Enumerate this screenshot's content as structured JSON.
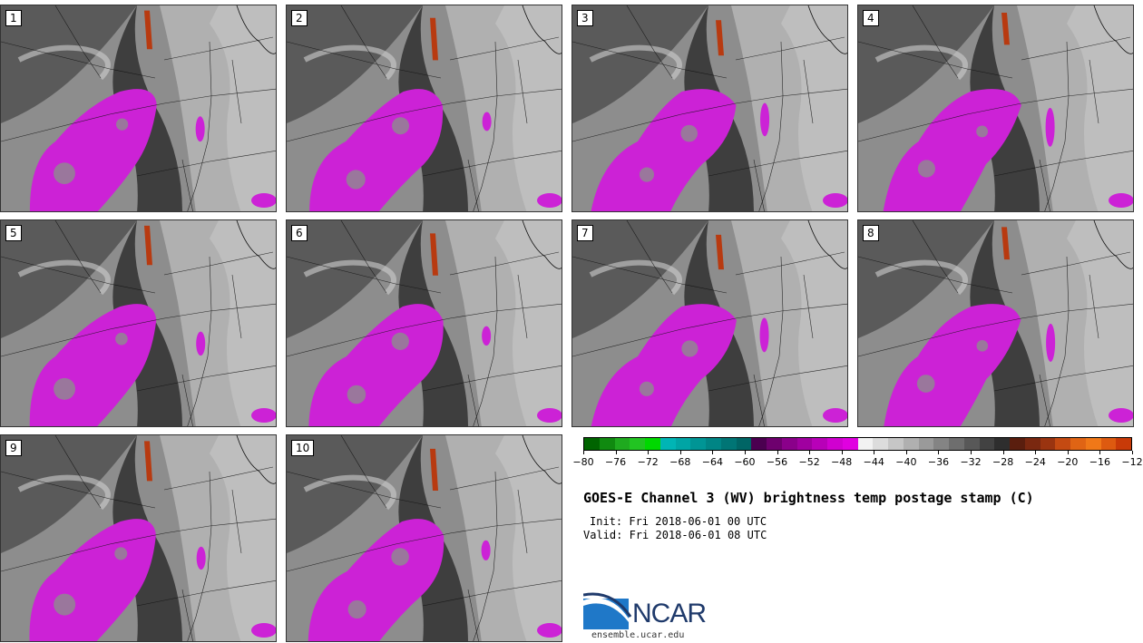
{
  "panels": [
    {
      "label": "1"
    },
    {
      "label": "2"
    },
    {
      "label": "3"
    },
    {
      "label": "4"
    },
    {
      "label": "5"
    },
    {
      "label": "6"
    },
    {
      "label": "7"
    },
    {
      "label": "8"
    },
    {
      "label": "9"
    },
    {
      "label": "10"
    }
  ],
  "colorbar": {
    "colors": [
      "#006400",
      "#108a10",
      "#1faa1f",
      "#22c422",
      "#00d800",
      "#00b5b5",
      "#00a5a5",
      "#009595",
      "#008585",
      "#007575",
      "#006565",
      "#4b0050",
      "#6e006e",
      "#8a008a",
      "#a000a0",
      "#b800b8",
      "#d000d0",
      "#e000e0",
      "#f2f2f2",
      "#dcdcdc",
      "#c6c6c6",
      "#b0b0b0",
      "#9a9a9a",
      "#848484",
      "#6e6e6e",
      "#585858",
      "#424242",
      "#2e2e2e",
      "#5a1e0e",
      "#7a2810",
      "#9a3410",
      "#c44a12",
      "#e06414",
      "#f07818",
      "#dd5a10",
      "#c83a08"
    ],
    "ticks": [
      "-80",
      "-76",
      "-72",
      "-68",
      "-64",
      "-60",
      "-56",
      "-52",
      "-48",
      "-44",
      "-40",
      "-36",
      "-32",
      "-28",
      "-24",
      "-20",
      "-16",
      "-12"
    ]
  },
  "title": "GOES-E Channel 3 (WV) brightness temp postage stamp (C)",
  "init": "Init: Fri 2018-06-01 00 UTC",
  "valid": "Valid: Fri 2018-06-01 08 UTC",
  "logo": {
    "text": "NCAR",
    "url": "ensemble.ucar.edu"
  }
}
